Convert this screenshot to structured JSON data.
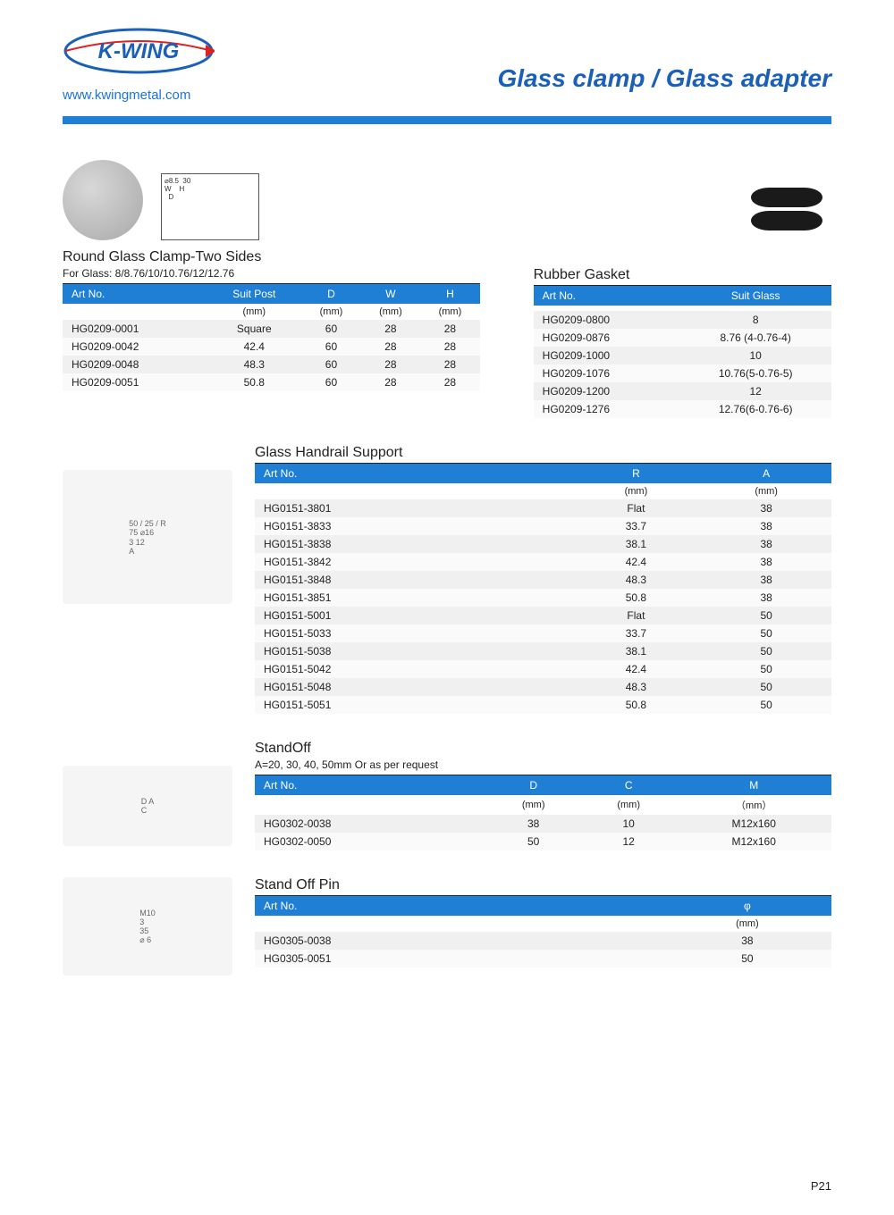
{
  "brand": "K-WING",
  "website": "www.kwingmetal.com",
  "page_title": "Glass clamp / Glass adapter",
  "page_number": "P21",
  "accent_color": "#1e7fd4",
  "sections": {
    "round_clamp": {
      "title": "Round Glass Clamp-Two Sides",
      "subtitle": "For Glass: 8/8.76/10/10.76/12/12.76",
      "tech_labels": [
        "⌀8.5",
        "30",
        "W",
        "H",
        "D"
      ],
      "columns": [
        "Art No.",
        "Suit Post",
        "D",
        "W",
        "H"
      ],
      "units": [
        "",
        "(mm)",
        "(mm)",
        "(mm)",
        "(mm)"
      ],
      "rows": [
        [
          "HG0209-0001",
          "Square",
          "60",
          "28",
          "28"
        ],
        [
          "HG0209-0042",
          "42.4",
          "60",
          "28",
          "28"
        ],
        [
          "HG0209-0048",
          "48.3",
          "60",
          "28",
          "28"
        ],
        [
          "HG0209-0051",
          "50.8",
          "60",
          "28",
          "28"
        ]
      ]
    },
    "rubber_gasket": {
      "title": "Rubber Gasket",
      "columns": [
        "Art No.",
        "Suit Glass"
      ],
      "units": [
        "",
        ""
      ],
      "rows": [
        [
          "HG0209-0800",
          "8"
        ],
        [
          "HG0209-0876",
          "8.76 (4-0.76-4)"
        ],
        [
          "HG0209-1000",
          "10"
        ],
        [
          "HG0209-1076",
          "10.76(5-0.76-5)"
        ],
        [
          "HG0209-1200",
          "12"
        ],
        [
          "HG0209-1276",
          "12.76(6-0.76-6)"
        ]
      ]
    },
    "handrail": {
      "title": "Glass Handrail Support",
      "tech_labels": [
        "50",
        "25",
        "R",
        "75",
        "⌀16",
        "3",
        "12",
        "A"
      ],
      "columns": [
        "Art No.",
        "R",
        "A"
      ],
      "units": [
        "",
        "(mm)",
        "(mm)"
      ],
      "rows": [
        [
          "HG0151-3801",
          "Flat",
          "38"
        ],
        [
          "HG0151-3833",
          "33.7",
          "38"
        ],
        [
          "HG0151-3838",
          "38.1",
          "38"
        ],
        [
          "HG0151-3842",
          "42.4",
          "38"
        ],
        [
          "HG0151-3848",
          "48.3",
          "38"
        ],
        [
          "HG0151-3851",
          "50.8",
          "38"
        ],
        [
          "HG0151-5001",
          "Flat",
          "50"
        ],
        [
          "HG0151-5033",
          "33.7",
          "50"
        ],
        [
          "HG0151-5038",
          "38.1",
          "50"
        ],
        [
          "HG0151-5042",
          "42.4",
          "50"
        ],
        [
          "HG0151-5048",
          "48.3",
          "50"
        ],
        [
          "HG0151-5051",
          "50.8",
          "50"
        ]
      ]
    },
    "standoff": {
      "title": "StandOff",
      "subtitle": "A=20, 30, 40, 50mm Or as per request",
      "columns": [
        "Art No.",
        "D",
        "C",
        "M"
      ],
      "units": [
        "",
        "(mm)",
        "(mm)",
        "（mm）"
      ],
      "rows": [
        [
          "HG0302-0038",
          "38",
          "10",
          "M12x160"
        ],
        [
          "HG0302-0050",
          "50",
          "12",
          "M12x160"
        ]
      ]
    },
    "standoff_pin": {
      "title": "Stand Off Pin",
      "tech_labels": [
        "M10",
        "3",
        "35",
        "⌀",
        "6"
      ],
      "columns": [
        "Art No.",
        "φ"
      ],
      "units": [
        "",
        "(mm)"
      ],
      "rows": [
        [
          "HG0305-0038",
          "38"
        ],
        [
          "HG0305-0051",
          "50"
        ]
      ]
    }
  }
}
